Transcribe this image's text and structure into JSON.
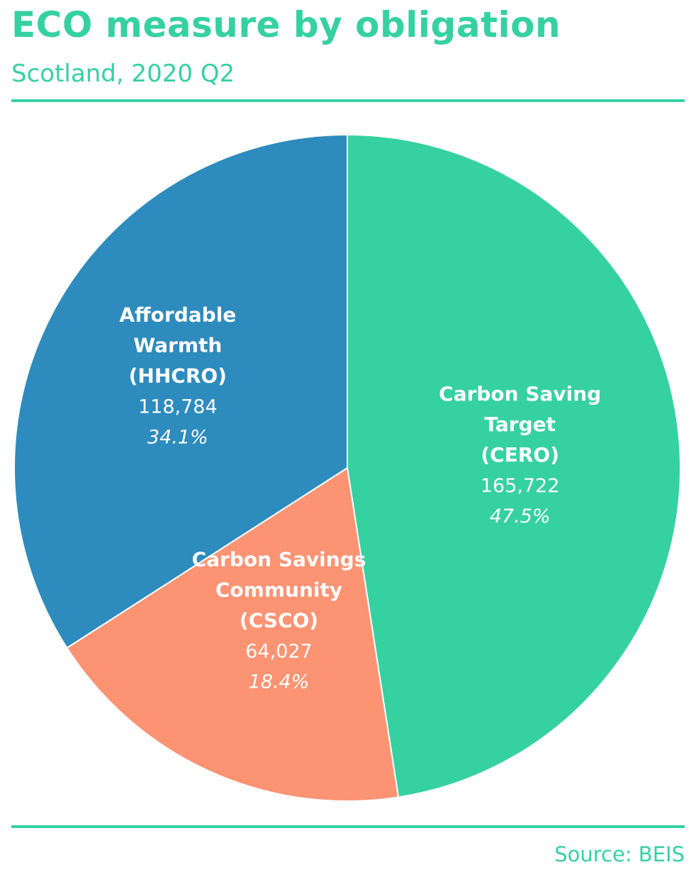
{
  "header": {
    "title": "ECO measure by obligation",
    "subtitle": "Scotland, 2020 Q2"
  },
  "footer": {
    "source": "Source: BEIS"
  },
  "colors": {
    "accent": "#36d1a0",
    "slice_text": "#ffffff",
    "separator": "#ffffff"
  },
  "chart_data": {
    "type": "pie",
    "title": "ECO measure by obligation",
    "subtitle": "Scotland, 2020 Q2",
    "start": "12 o'clock",
    "direction": "clockwise",
    "slices": [
      {
        "label": [
          "Carbon Saving",
          "Target",
          "(CERO)"
        ],
        "value": 165722,
        "value_text": "165,722",
        "percent": 47.5,
        "percent_text": "47.5%",
        "color": "#36d1a0"
      },
      {
        "label": [
          "Carbon Savings",
          "Community",
          "(CSCO)"
        ],
        "value": 64027,
        "value_text": "64,027",
        "percent": 18.4,
        "percent_text": "18.4%",
        "color": "#fc9373"
      },
      {
        "label": [
          "Affordable",
          "Warmth",
          "(HHCRO)"
        ],
        "value": 118784,
        "value_text": "118,784",
        "percent": 34.1,
        "percent_text": "34.1%",
        "color": "#2e8bbd"
      }
    ]
  }
}
